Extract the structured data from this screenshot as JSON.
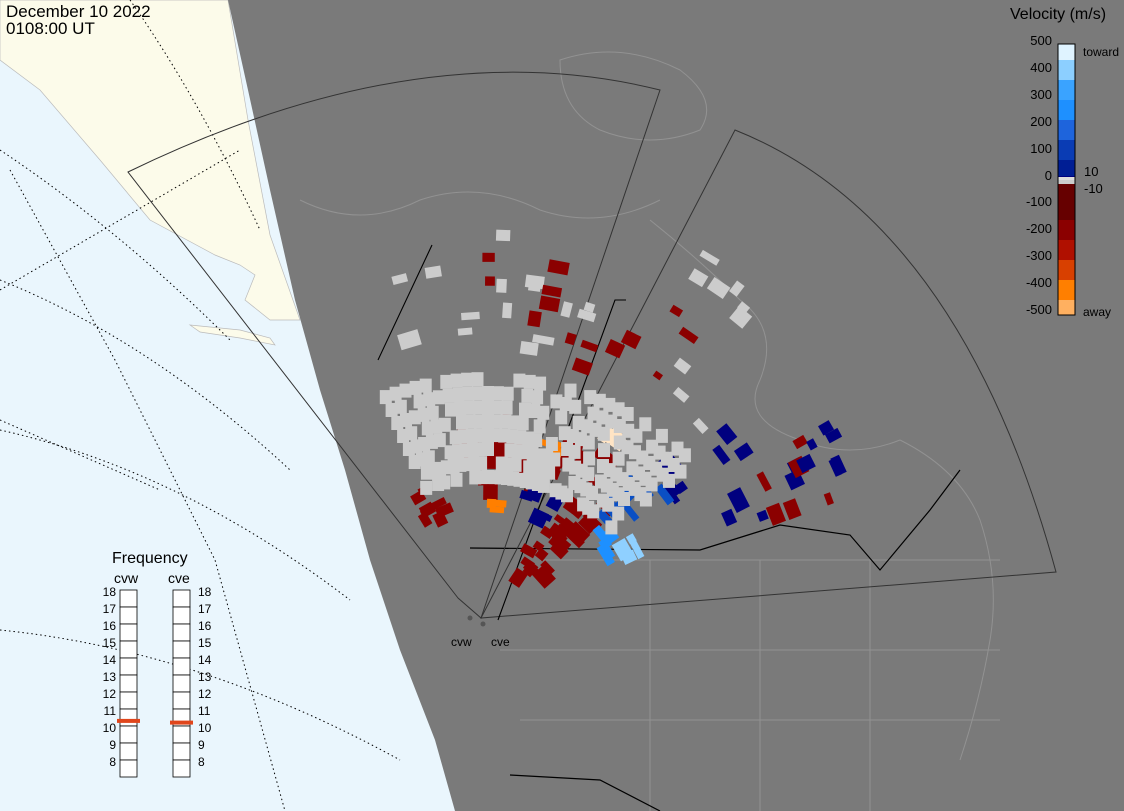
{
  "header": {
    "date": "December 10 2022",
    "time": "0108:00 UT"
  },
  "colorbar": {
    "title": "Velocity (m/s)",
    "ticks": [
      "500",
      "400",
      "300",
      "200",
      "100",
      "10",
      "0",
      "-10",
      "-100",
      "-200",
      "-300",
      "-400",
      "-500"
    ],
    "toward_label": "toward",
    "away_label": "away",
    "colors": {
      "toward_strong": "#dff3ff",
      "toward_mid": "#1e90ff",
      "toward_low": "#00007f",
      "ground": "#cccccc",
      "away_low": "#8b0000",
      "away_mid": "#ff7f00",
      "away_strong": "#ffe4c4"
    }
  },
  "frequency_panel": {
    "title": "Frequency",
    "radars": [
      {
        "code": "cvw",
        "selected_mhz": 10.8
      },
      {
        "code": "cve",
        "selected_mhz": 10.7
      }
    ],
    "scale": [
      "18",
      "17",
      "16",
      "15",
      "14",
      "13",
      "12",
      "11",
      "10",
      "9",
      "8"
    ]
  },
  "sites": [
    {
      "code": "cvw"
    },
    {
      "code": "cve"
    }
  ],
  "map_colors": {
    "night": "#7a7a7a",
    "day_land": "#fcfbea",
    "day_ocean": "#eaf6fd"
  }
}
